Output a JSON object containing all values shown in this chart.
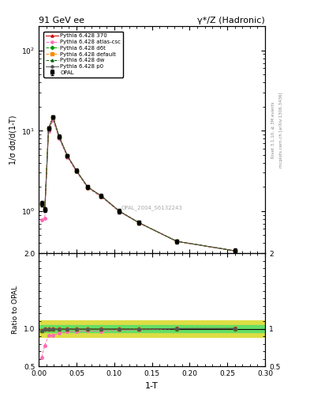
{
  "title_left": "91 GeV ee",
  "title_right": "γ*/Z (Hadronic)",
  "xlabel": "1-T",
  "ylabel_main": "1/σ dσ/d(1-T)",
  "ylabel_ratio": "Ratio to OPAL",
  "right_label": "Rivet 3.1.10, ≥ 3M events",
  "right_label2": "mcplots.cern.ch [arXiv:1306.3436]",
  "watermark": "OPAL_2004_S6132243",
  "opal_x": [
    0.004,
    0.008,
    0.013,
    0.019,
    0.027,
    0.038,
    0.05,
    0.065,
    0.083,
    0.107,
    0.133,
    0.183,
    0.26
  ],
  "opal_y": [
    1.25,
    1.05,
    10.8,
    14.8,
    8.5,
    4.9,
    3.2,
    2.0,
    1.55,
    1.0,
    0.72,
    0.42,
    0.32
  ],
  "opal_yerr": [
    0.1,
    0.08,
    0.6,
    0.7,
    0.45,
    0.25,
    0.18,
    0.12,
    0.09,
    0.06,
    0.04,
    0.025,
    0.02
  ],
  "series": [
    {
      "key": "py370",
      "x": [
        0.004,
        0.008,
        0.013,
        0.019,
        0.027,
        0.038,
        0.05,
        0.065,
        0.083,
        0.107,
        0.133,
        0.183,
        0.26
      ],
      "y": [
        1.22,
        1.05,
        10.7,
        14.7,
        8.45,
        4.88,
        3.18,
        1.99,
        1.54,
        0.995,
        0.715,
        0.42,
        0.32
      ],
      "color": "#cc0000",
      "style": "-",
      "marker": "^",
      "label": "Pythia 6.428 370",
      "ratio": [
        0.976,
        1.0,
        0.991,
        0.993,
        0.994,
        0.996,
        0.994,
        0.995,
        0.994,
        0.995,
        0.993,
        1.0,
        1.0
      ]
    },
    {
      "key": "pyatlas",
      "x": [
        0.004,
        0.008,
        0.013,
        0.019,
        0.027,
        0.038,
        0.05,
        0.065,
        0.083,
        0.107,
        0.133,
        0.183,
        0.26
      ],
      "y": [
        0.78,
        0.82,
        9.8,
        13.5,
        8.0,
        4.7,
        3.08,
        1.94,
        1.5,
        0.98,
        0.71,
        0.42,
        0.32
      ],
      "color": "#ff69b4",
      "style": "--",
      "marker": "o",
      "label": "Pythia 6.428 atlas-csc",
      "ratio": [
        0.624,
        0.781,
        0.907,
        0.912,
        0.941,
        0.959,
        0.963,
        0.97,
        0.968,
        0.98,
        0.986,
        1.0,
        1.0
      ]
    },
    {
      "key": "pyd6t",
      "x": [
        0.004,
        0.008,
        0.013,
        0.019,
        0.027,
        0.038,
        0.05,
        0.065,
        0.083,
        0.107,
        0.133,
        0.183,
        0.26
      ],
      "y": [
        1.22,
        1.05,
        10.7,
        14.7,
        8.45,
        4.88,
        3.18,
        1.99,
        1.54,
        0.995,
        0.715,
        0.42,
        0.32
      ],
      "color": "#009900",
      "style": "--",
      "marker": "D",
      "label": "Pythia 6.428 d6t",
      "ratio": [
        0.976,
        1.0,
        0.991,
        0.993,
        0.994,
        0.996,
        0.994,
        0.995,
        0.994,
        0.995,
        0.993,
        1.0,
        1.0
      ]
    },
    {
      "key": "pydef",
      "x": [
        0.004,
        0.008,
        0.013,
        0.019,
        0.027,
        0.038,
        0.05,
        0.065,
        0.083,
        0.107,
        0.133,
        0.183,
        0.26
      ],
      "y": [
        1.22,
        1.05,
        10.72,
        14.73,
        8.46,
        4.885,
        3.182,
        1.992,
        1.542,
        0.997,
        0.717,
        0.421,
        0.321
      ],
      "color": "#ff8800",
      "style": "--",
      "marker": "s",
      "label": "Pythia 6.428 default",
      "ratio": [
        0.976,
        1.0,
        0.993,
        0.995,
        0.995,
        0.997,
        0.995,
        0.996,
        0.995,
        0.997,
        0.996,
        1.002,
        1.003
      ]
    },
    {
      "key": "pydw",
      "x": [
        0.004,
        0.008,
        0.013,
        0.019,
        0.027,
        0.038,
        0.05,
        0.065,
        0.083,
        0.107,
        0.133,
        0.183,
        0.26
      ],
      "y": [
        1.22,
        1.05,
        10.72,
        14.75,
        8.47,
        4.89,
        3.185,
        1.995,
        1.545,
        0.998,
        0.718,
        0.421,
        0.321
      ],
      "color": "#006600",
      "style": "--",
      "marker": "^",
      "label": "Pythia 6.428 dw",
      "ratio": [
        0.976,
        1.0,
        0.993,
        0.997,
        0.997,
        0.998,
        0.996,
        0.998,
        0.997,
        0.998,
        0.997,
        1.002,
        1.003
      ]
    },
    {
      "key": "pyp0",
      "x": [
        0.004,
        0.008,
        0.013,
        0.019,
        0.027,
        0.038,
        0.05,
        0.065,
        0.083,
        0.107,
        0.133,
        0.183,
        0.26
      ],
      "y": [
        1.22,
        1.05,
        10.72,
        14.73,
        8.46,
        4.885,
        3.182,
        1.992,
        1.542,
        0.997,
        0.717,
        0.421,
        0.321
      ],
      "color": "#555555",
      "style": "-",
      "marker": "o",
      "label": "Pythia 6.428 p0",
      "ratio": [
        0.976,
        1.0,
        0.993,
        0.995,
        0.995,
        0.997,
        0.995,
        0.996,
        0.994,
        0.997,
        0.993,
        1.002,
        1.003
      ]
    }
  ],
  "band_inner_color": "#66dd66",
  "band_outer_color": "#dddd44",
  "band_inner_half": 0.05,
  "band_outer_half": 0.11,
  "xlim": [
    0.0,
    0.3
  ],
  "ylim_main": [
    0.3,
    200
  ],
  "ylim_ratio": [
    0.5,
    2.0
  ],
  "yticks_ratio": [
    0.5,
    1.0,
    2.0
  ]
}
